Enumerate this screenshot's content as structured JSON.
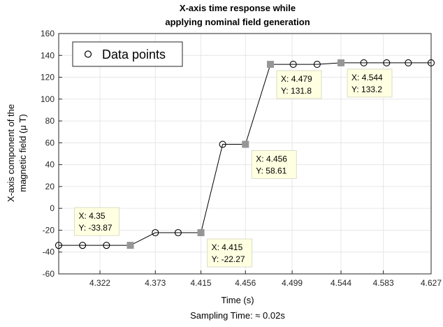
{
  "chart_data": {
    "type": "line",
    "title_lines": [
      "X-axis time response while",
      "applying nominal field generation"
    ],
    "xlabel": "Time (s)",
    "xlabel_sub": "Sampling Time: ≈ 0.02s",
    "ylabel_lines": [
      "X-axis component of the",
      "magnetic field (μ T)"
    ],
    "x_ticks": [
      "4.322",
      "4.373",
      "4.415",
      "4.456",
      "4.499",
      "4.544",
      "4.583",
      "4.627"
    ],
    "y_ticks": [
      160,
      140,
      120,
      100,
      80,
      60,
      40,
      20,
      0,
      -20,
      -40,
      -60
    ],
    "ylim": [
      -60,
      160
    ],
    "grid": true,
    "legend": {
      "label": "Data points",
      "placement": "top-left"
    },
    "series": [
      {
        "name": "Data points",
        "marker": "open-circle",
        "line": true,
        "x": [
          4.284,
          4.306,
          4.328,
          4.35,
          4.373,
          4.394,
          4.415,
          4.435,
          4.456,
          4.479,
          4.5,
          4.522,
          4.544,
          4.565,
          4.586,
          4.606,
          4.627
        ],
        "y": [
          -33.87,
          -33.87,
          -33.87,
          -33.87,
          -22.27,
          -22.27,
          -22.27,
          58.61,
          58.61,
          131.8,
          131.8,
          131.8,
          133.2,
          133.2,
          133.2,
          133.2,
          133.2
        ]
      }
    ],
    "datatips": [
      {
        "index": 3,
        "x_text": "X: 4.35",
        "y_text": "Y: -33.87"
      },
      {
        "index": 6,
        "x_text": "X: 4.415",
        "y_text": "Y: -22.27"
      },
      {
        "index": 8,
        "x_text": "X: 4.456",
        "y_text": "Y: 58.61"
      },
      {
        "index": 9,
        "x_text": "X: 4.479",
        "y_text": "Y: 131.8"
      },
      {
        "index": 12,
        "x_text": "X: 4.544",
        "y_text": "Y: 133.2"
      }
    ]
  },
  "colors": {
    "line": "#000000",
    "marker_edge": "#000000",
    "datatip_marker": "#969696",
    "datatip_bg": "#ffffe1",
    "grid": "#e6e6e6",
    "axis": "#262626"
  }
}
